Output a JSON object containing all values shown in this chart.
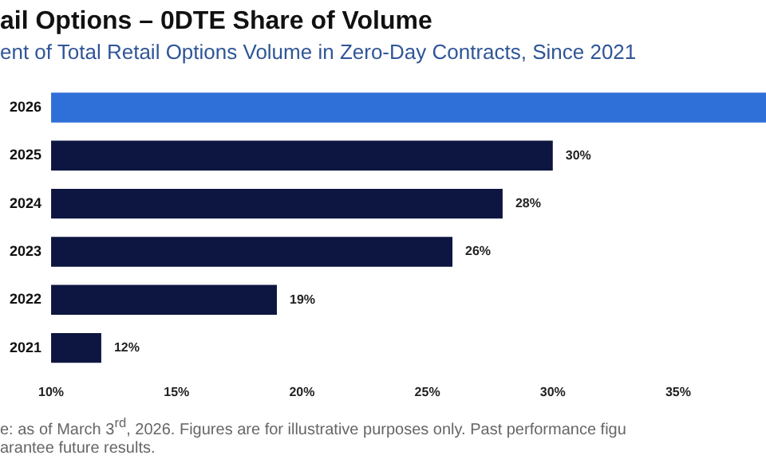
{
  "chart_data": {
    "type": "bar",
    "orientation": "horizontal",
    "title": "ail Options – 0DTE Share of Volume",
    "subtitle": "ent of Total Retail Options Volume in Zero-Day Contracts, Since 2021",
    "categories": [
      "2026",
      "2025",
      "2024",
      "2023",
      "2022",
      "2021"
    ],
    "values": [
      38.5,
      30,
      28,
      26,
      19,
      12
    ],
    "colors": [
      "#2f6fd8",
      "#0d1640",
      "#0d1640",
      "#0d1640",
      "#0d1640",
      "#0d1640"
    ],
    "value_labels": [
      null,
      "30%",
      "28%",
      "26%",
      "19%",
      "12%"
    ],
    "xlim": [
      10,
      38.5
    ],
    "xticks": [
      {
        "value": 10,
        "label": "10%"
      },
      {
        "value": 15,
        "label": "15%"
      },
      {
        "value": 20,
        "label": "20%"
      },
      {
        "value": 25,
        "label": "25%"
      },
      {
        "value": 30,
        "label": "30%"
      },
      {
        "value": 35,
        "label": "35%"
      }
    ],
    "grid": false,
    "legend": false,
    "annotations": [
      "e: as of March 3$^{rd}$, 2026. Figures are for illustrative purposes only. Past performance figu",
      "arantee future results."
    ]
  }
}
